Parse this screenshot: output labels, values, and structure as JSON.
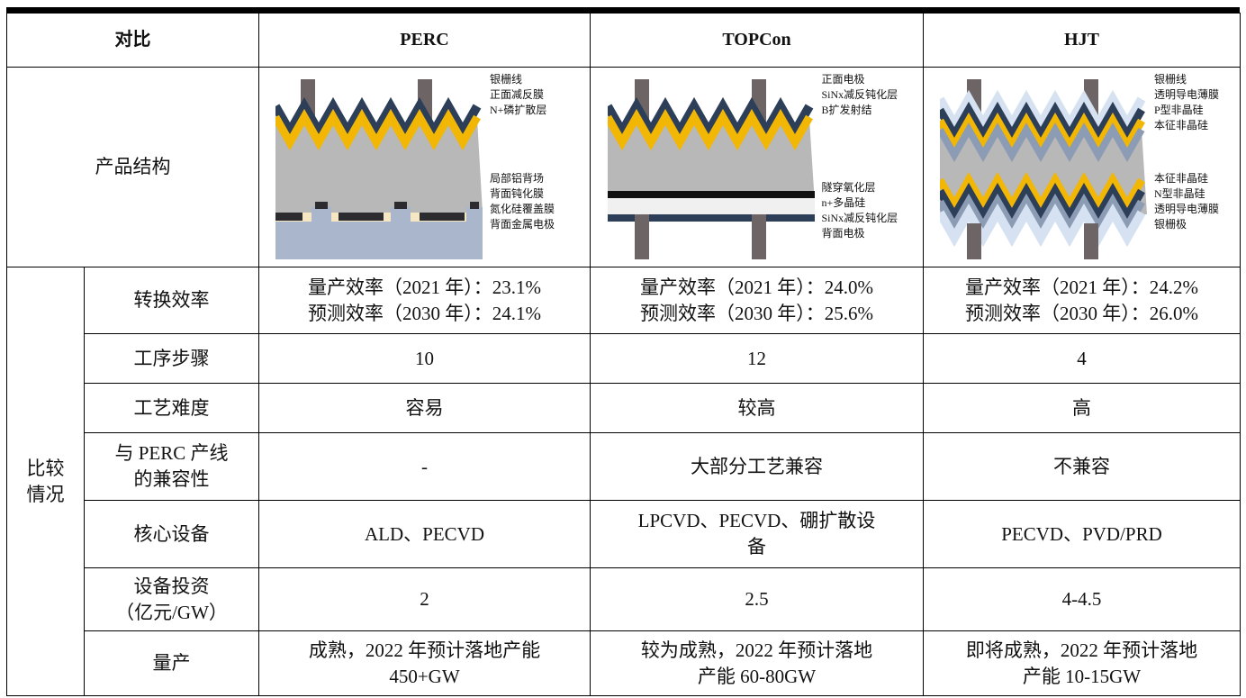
{
  "table": {
    "header": [
      "对比",
      "PERC",
      "TOPCon",
      "HJT"
    ],
    "structure": {
      "label": "产品结构",
      "diagrams": [
        {
          "kind": "perc",
          "top_labels": [
            "银栅线",
            "正面减反膜",
            "N+磷扩散层"
          ],
          "bottom_labels": [
            "局部铝背场",
            "背面钝化膜",
            "氮化硅覆盖膜",
            "背面金属电极"
          ]
        },
        {
          "kind": "topcon",
          "top_labels": [
            "正面电极",
            "SiNx减反钝化层",
            "B扩发射结"
          ],
          "bottom_labels": [
            "隧穿氧化层",
            "n+多晶硅",
            "SiNx减反钝化层",
            "背面电极"
          ]
        },
        {
          "kind": "hjt",
          "top_labels": [
            "银栅线",
            "透明导电薄膜",
            "P型非晶硅",
            "本征非晶硅"
          ],
          "bottom_labels": [
            "本征非晶硅",
            "N型非晶硅",
            "透明导电薄膜",
            "银栅极"
          ]
        }
      ]
    },
    "group_label": "比较\n情况",
    "rows": [
      [
        "转换效率",
        "量产效率（2021 年）：23.1%\n预测效率（2030 年）：24.1%",
        "量产效率（2021 年）：24.0%\n预测效率（2030 年）：25.6%",
        "量产效率（2021 年）：24.2%\n预测效率（2030 年）：26.0%"
      ],
      [
        "工序步骤",
        "10",
        "12",
        "4"
      ],
      [
        "工艺难度",
        "容易",
        "较高",
        "高"
      ],
      [
        "与 PERC 产线\n的兼容性",
        "-",
        "大部分工艺兼容",
        "不兼容"
      ],
      [
        "核心设备",
        "ALD、PECVD",
        "LPCVD、PECVD、硼扩散设\n备",
        "PECVD、PVD/PRD"
      ],
      [
        "设备投资\n（亿元/GW）",
        "2",
        "2.5",
        "4-4.5"
      ],
      [
        "量产",
        "成熟，2022 年预计落地产能\n450+GW",
        "较为成熟，2022 年预计落地\n产能 60-80GW",
        "即将成熟，2022 年预计落地\n产能 10-15GW"
      ]
    ]
  }
}
